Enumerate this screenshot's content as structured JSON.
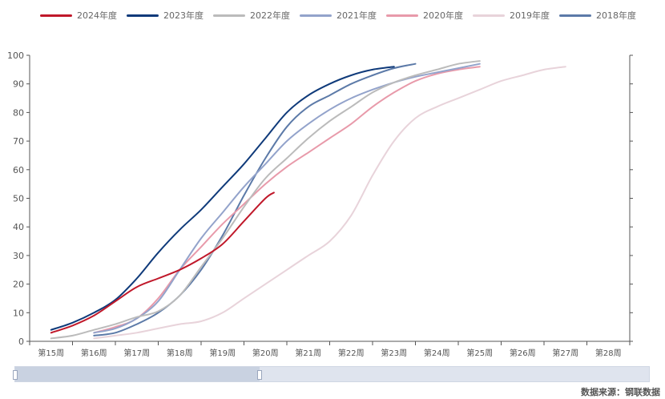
{
  "chart_data": {
    "type": "line",
    "categories": [
      "第15周",
      "第16周",
      "第17周",
      "第18周",
      "第19周",
      "第20周",
      "第21周",
      "第22周",
      "第23周",
      "第24周",
      "第25周",
      "第26周",
      "第27周",
      "第28周"
    ],
    "ylim": [
      0,
      100
    ],
    "yticks": [
      0,
      10,
      20,
      30,
      40,
      50,
      60,
      70,
      80,
      90,
      100
    ],
    "legend_position": "top",
    "grid": false,
    "series": [
      {
        "name": "2024年度",
        "color": "#c0182a",
        "points": [
          [
            15,
            3
          ],
          [
            15.5,
            5.5
          ],
          [
            16,
            9
          ],
          [
            16.5,
            14
          ],
          [
            17,
            19
          ],
          [
            17.5,
            22
          ],
          [
            18,
            25
          ],
          [
            18.5,
            29
          ],
          [
            19,
            34
          ],
          [
            19.5,
            42
          ],
          [
            20,
            50
          ],
          [
            20.2,
            52
          ]
        ]
      },
      {
        "name": "2023年度",
        "color": "#0f3a7a",
        "points": [
          [
            15,
            4
          ],
          [
            15.5,
            6.5
          ],
          [
            16,
            10
          ],
          [
            16.5,
            14.5
          ],
          [
            17,
            22
          ],
          [
            17.5,
            31
          ],
          [
            18,
            39
          ],
          [
            18.5,
            46
          ],
          [
            19,
            54
          ],
          [
            19.5,
            62
          ],
          [
            20,
            71
          ],
          [
            20.5,
            80
          ],
          [
            21,
            86
          ],
          [
            21.5,
            90
          ],
          [
            22,
            93
          ],
          [
            22.5,
            95
          ],
          [
            23,
            96
          ]
        ]
      },
      {
        "name": "2022年度",
        "color": "#bbbbbb",
        "points": [
          [
            15,
            1
          ],
          [
            15.5,
            2
          ],
          [
            16,
            4
          ],
          [
            16.5,
            6
          ],
          [
            17,
            8.5
          ],
          [
            17.5,
            10.5
          ],
          [
            18,
            16
          ],
          [
            18.5,
            26
          ],
          [
            19,
            36
          ],
          [
            19.5,
            47
          ],
          [
            20,
            57
          ],
          [
            20.5,
            64
          ],
          [
            21,
            71
          ],
          [
            21.5,
            77
          ],
          [
            22,
            82
          ],
          [
            22.5,
            87
          ],
          [
            23,
            90.5
          ],
          [
            23.5,
            93
          ],
          [
            24,
            95
          ],
          [
            24.5,
            97
          ],
          [
            25,
            98
          ]
        ]
      },
      {
        "name": "2021年度",
        "color": "#93a3cb",
        "points": [
          [
            16,
            3
          ],
          [
            16.5,
            4.5
          ],
          [
            17,
            8
          ],
          [
            17.5,
            14
          ],
          [
            18,
            25
          ],
          [
            18.5,
            36
          ],
          [
            19,
            45
          ],
          [
            19.5,
            54
          ],
          [
            20,
            62
          ],
          [
            20.5,
            70
          ],
          [
            21,
            76
          ],
          [
            21.5,
            81
          ],
          [
            22,
            85
          ],
          [
            22.5,
            88
          ],
          [
            23,
            90.5
          ],
          [
            23.5,
            92.5
          ],
          [
            24,
            94
          ],
          [
            24.5,
            95.5
          ],
          [
            25,
            97
          ]
        ]
      },
      {
        "name": "2020年度",
        "color": "#e89aaa",
        "points": [
          [
            16,
            3
          ],
          [
            16.5,
            5
          ],
          [
            17,
            8
          ],
          [
            17.5,
            15
          ],
          [
            18,
            25
          ],
          [
            18.5,
            33
          ],
          [
            19,
            41
          ],
          [
            19.5,
            48
          ],
          [
            20,
            55
          ],
          [
            20.5,
            61
          ],
          [
            21,
            66
          ],
          [
            21.5,
            71
          ],
          [
            22,
            76
          ],
          [
            22.5,
            82
          ],
          [
            23,
            87
          ],
          [
            23.5,
            91
          ],
          [
            24,
            93.5
          ],
          [
            24.5,
            95
          ],
          [
            25,
            96
          ]
        ]
      },
      {
        "name": "2019年度",
        "color": "#e8d3da",
        "points": [
          [
            16,
            1
          ],
          [
            16.5,
            2
          ],
          [
            17,
            3
          ],
          [
            17.5,
            4.5
          ],
          [
            18,
            6
          ],
          [
            18.5,
            7
          ],
          [
            19,
            10
          ],
          [
            19.5,
            15
          ],
          [
            20,
            20
          ],
          [
            20.5,
            25
          ],
          [
            21,
            30
          ],
          [
            21.5,
            35
          ],
          [
            22,
            44
          ],
          [
            22.5,
            58
          ],
          [
            23,
            70
          ],
          [
            23.5,
            78
          ],
          [
            24,
            82
          ],
          [
            24.5,
            85
          ],
          [
            25,
            88
          ],
          [
            25.5,
            91
          ],
          [
            26,
            93
          ],
          [
            26.5,
            95
          ],
          [
            27,
            96
          ]
        ]
      },
      {
        "name": "2018年度",
        "color": "#5c7aa8",
        "points": [
          [
            16,
            2
          ],
          [
            16.5,
            3
          ],
          [
            17,
            6
          ],
          [
            17.5,
            10
          ],
          [
            18,
            16
          ],
          [
            18.5,
            25
          ],
          [
            19,
            37
          ],
          [
            19.5,
            51
          ],
          [
            20,
            64
          ],
          [
            20.5,
            75
          ],
          [
            21,
            82
          ],
          [
            21.5,
            86
          ],
          [
            22,
            90
          ],
          [
            22.5,
            93
          ],
          [
            23,
            95.5
          ],
          [
            23.5,
            97
          ]
        ]
      }
    ]
  },
  "footer": {
    "source": "数据来源：钢联数据"
  }
}
